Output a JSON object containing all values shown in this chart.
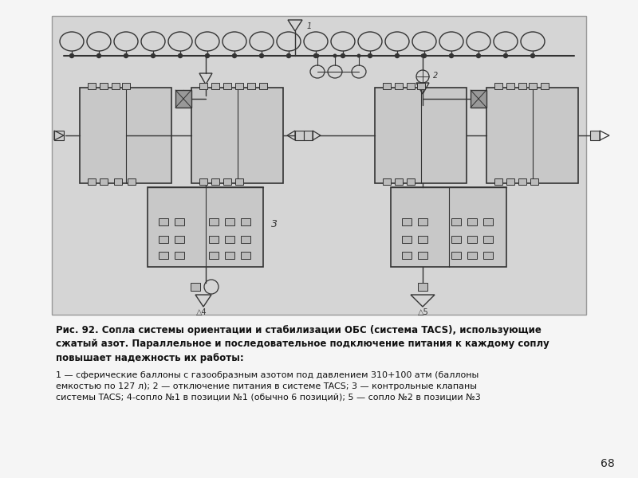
{
  "page_bg": "#f5f5f5",
  "diagram_bg": "#d8d8d8",
  "diagram_border": "#999999",
  "title_bold_text": "Рис. 92. Сопла системы ориентации и стабилизации ОБС (система TACS), использующие\nсжатый азот. Параллельное и последовательное подключение питания к каждому соплу\nповышает надежность их работы:",
  "body_text": "1 — сферические баллоны с газообразным азотом под давлением 310+100 атм (баллоны\nемкостью по 127 л); 2 — отключение питания в системе TACS; 3 — контрольные клапаны\nсистемы TACS; 4-сопло №1 в позиции №1 (обычно 6 позиций); 5 — сопло №2 в позиции №3",
  "page_number": "68",
  "lc": "#333333",
  "fc_box": "#cccccc",
  "fc_small": "#aaaaaa"
}
